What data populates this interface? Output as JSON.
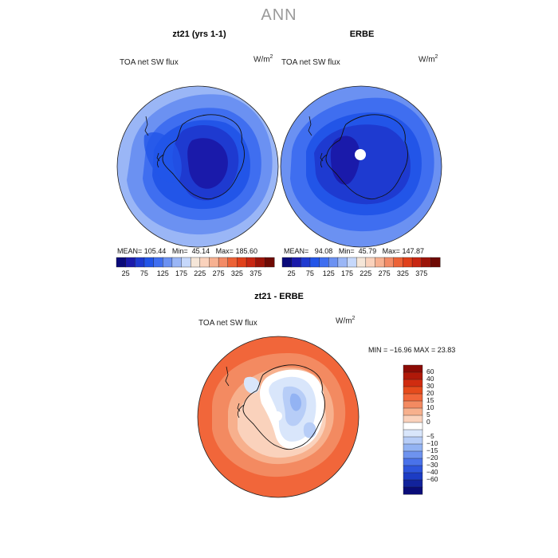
{
  "main_title": "ANN",
  "panels": {
    "left": {
      "title": "zt21 (yrs 1-1)",
      "variable": "TOA net SW flux",
      "units": "W/m",
      "mean_label": "MEAN=",
      "mean": "105.44",
      "min_label": "Min=",
      "min": "45.14",
      "max_label": "Max=",
      "max": "185.60"
    },
    "right": {
      "title": "ERBE",
      "variable": "TOA net SW flux",
      "units": "W/m",
      "mean_label": "MEAN=",
      "mean": "94.08",
      "min_label": "Min=",
      "min": "45.79",
      "max_label": "Max=",
      "max": "147.87"
    },
    "diff": {
      "title": "zt21 - ERBE",
      "variable": "TOA net SW flux",
      "units": "W/m",
      "minmax": "MIN = −16.96  MAX =   23.83"
    }
  },
  "units_exponent": "2",
  "colorbar_top": {
    "colors": [
      "#0a0a7a",
      "#1a1aaa",
      "#1e3ad0",
      "#2255e8",
      "#3f6ef0",
      "#6b91f2",
      "#9ab6f6",
      "#c6d8fb",
      "#f5e6d8",
      "#fad2bc",
      "#f7b191",
      "#f38b66",
      "#ec6236",
      "#e0401a",
      "#c82612",
      "#9c1409",
      "#6e0a04"
    ],
    "ticks": [
      "25",
      "75",
      "125",
      "175",
      "225",
      "275",
      "325",
      "375"
    ]
  },
  "colorbar_diff": {
    "colors": [
      "#8c0b05",
      "#b01909",
      "#d02c10",
      "#e64b1c",
      "#f1663a",
      "#f38a61",
      "#f7b08d",
      "#fad2bc",
      "#ffffff",
      "#d9e6fb",
      "#b7cdf7",
      "#93b3f3",
      "#6e93ef",
      "#4a72ea",
      "#2e55dc",
      "#1c3cc4",
      "#12239c",
      "#0a0c78"
    ],
    "ticks": [
      "60",
      "40",
      "30",
      "20",
      "15",
      "10",
      "5",
      "0",
      "−5",
      "−10",
      "−15",
      "−20",
      "−30",
      "−40",
      "−60"
    ]
  },
  "chart_data": [
    {
      "type": "map",
      "region": "South Polar (Antarctica)",
      "title": "zt21 (yrs 1-1)",
      "variable": "TOA net SW flux",
      "units": "W/m2",
      "mean": 105.44,
      "min": 45.14,
      "max": 185.6,
      "contour_levels": [
        25,
        50,
        75,
        100,
        125,
        150,
        175,
        200,
        225,
        250,
        275,
        300,
        325,
        350,
        375
      ]
    },
    {
      "type": "map",
      "region": "South Polar (Antarctica)",
      "title": "ERBE",
      "variable": "TOA net SW flux",
      "units": "W/m2",
      "mean": 94.08,
      "min": 45.79,
      "max": 147.87,
      "contour_levels": [
        25,
        50,
        75,
        100,
        125,
        150,
        175,
        200,
        225,
        250,
        275,
        300,
        325,
        350,
        375
      ]
    },
    {
      "type": "map",
      "region": "South Polar (Antarctica)",
      "title": "zt21 - ERBE",
      "variable": "TOA net SW flux",
      "units": "W/m2",
      "min": -16.96,
      "max": 23.83,
      "contour_levels": [
        -60,
        -40,
        -30,
        -20,
        -15,
        -10,
        -5,
        0,
        5,
        10,
        15,
        20,
        30,
        40,
        60
      ]
    }
  ]
}
